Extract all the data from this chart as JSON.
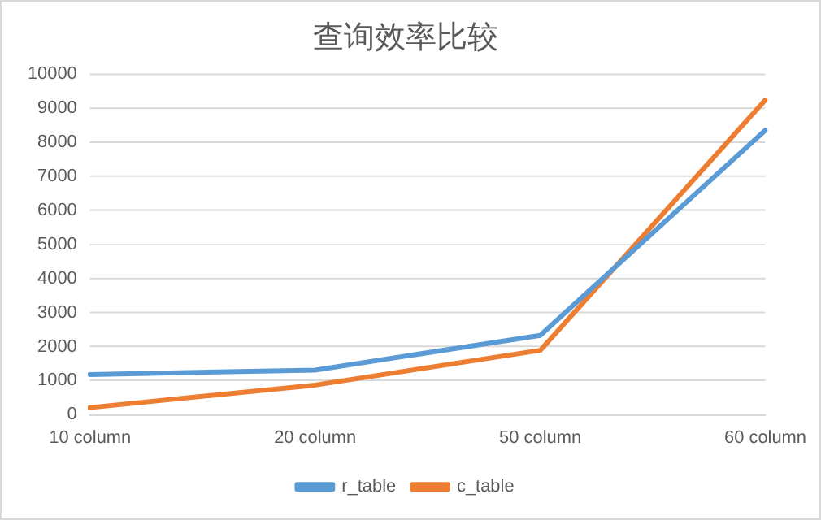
{
  "chart_data": {
    "type": "line",
    "title": "查询效率比较",
    "categories": [
      "10 column",
      "20 column",
      "50 column",
      "60 column"
    ],
    "series": [
      {
        "name": "r_table",
        "color": "#5b9bd5",
        "values": [
          1180,
          1310,
          2330,
          8350
        ]
      },
      {
        "name": "c_table",
        "color": "#ed7d31",
        "values": [
          210,
          870,
          1890,
          9240
        ]
      }
    ],
    "ylim": [
      0,
      10000
    ],
    "yticks": [
      0,
      1000,
      2000,
      3000,
      4000,
      5000,
      6000,
      7000,
      8000,
      9000,
      10000
    ],
    "grid": "y",
    "legend": "bottom",
    "marker": "none",
    "line_style": "solid"
  }
}
